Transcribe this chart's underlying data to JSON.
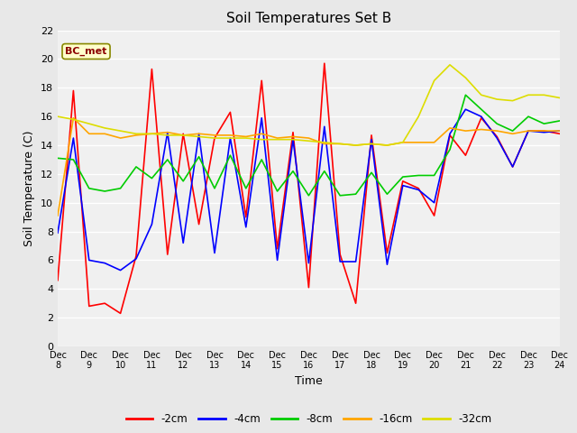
{
  "title": "Soil Temperatures Set B",
  "xlabel": "Time",
  "ylabel": "Soil Temperature (C)",
  "annotation_text": "BC_met",
  "annotation_color": "#8B0000",
  "annotation_bg": "#FFFFCC",
  "ylim": [
    0,
    22
  ],
  "bg_color": "#E8E8E8",
  "plot_bg": "#F0F0F0",
  "xtick_labels": [
    "Dec 8",
    "Dec 9",
    "Dec 10",
    "Dec 11",
    "Dec 12",
    "Dec 13",
    "Dec 14",
    "Dec 15",
    "Dec 16",
    "Dec 17",
    "Dec 18",
    "Dec 19",
    "Dec 20",
    "Dec 21",
    "Dec 22",
    "Dec 23",
    "Dec 24"
  ],
  "series": {
    "-2cm": {
      "color": "#FF0000",
      "data": [
        4.6,
        17.8,
        2.8,
        3.0,
        2.3,
        6.3,
        19.3,
        6.4,
        14.8,
        8.5,
        14.5,
        16.3,
        9.0,
        18.5,
        6.8,
        14.9,
        4.1,
        19.7,
        6.4,
        3.0,
        14.7,
        6.5,
        11.5,
        11.0,
        9.1,
        14.7,
        13.3,
        15.9,
        14.6,
        12.5,
        15.0,
        15.0,
        14.8
      ]
    },
    "-4cm": {
      "color": "#0000FF",
      "data": [
        7.9,
        14.5,
        6.0,
        5.8,
        5.3,
        6.1,
        8.5,
        14.9,
        7.2,
        14.8,
        6.5,
        14.5,
        8.3,
        15.9,
        6.0,
        14.4,
        5.8,
        15.3,
        5.9,
        5.9,
        14.4,
        5.7,
        11.2,
        10.9,
        10.0,
        14.8,
        16.5,
        16.0,
        14.5,
        12.5,
        15.0,
        14.9,
        15.0
      ]
    },
    "-8cm": {
      "color": "#00CC00",
      "data": [
        13.1,
        13.0,
        11.0,
        10.8,
        11.0,
        12.5,
        11.7,
        13.0,
        11.5,
        13.2,
        11.0,
        13.3,
        11.0,
        13.0,
        10.8,
        12.2,
        10.5,
        12.2,
        10.5,
        10.6,
        12.1,
        10.6,
        11.8,
        11.9,
        11.9,
        13.7,
        17.5,
        16.5,
        15.5,
        15.0,
        16.0,
        15.5,
        15.7
      ]
    },
    "-16cm": {
      "color": "#FFA500",
      "data": [
        9.1,
        15.9,
        14.8,
        14.8,
        14.5,
        14.7,
        14.8,
        14.9,
        14.7,
        14.8,
        14.7,
        14.7,
        14.6,
        14.8,
        14.5,
        14.6,
        14.5,
        14.1,
        14.1,
        14.0,
        14.1,
        14.0,
        14.2,
        14.2,
        14.2,
        15.2,
        15.0,
        15.1,
        15.0,
        14.8,
        15.0,
        15.0,
        15.0
      ]
    },
    "-32cm": {
      "color": "#DDDD00",
      "data": [
        16.0,
        15.8,
        15.5,
        15.2,
        15.0,
        14.8,
        14.8,
        14.7,
        14.7,
        14.6,
        14.5,
        14.5,
        14.5,
        14.4,
        14.4,
        14.4,
        14.3,
        14.2,
        14.1,
        14.0,
        14.1,
        14.0,
        14.2,
        16.0,
        18.5,
        19.6,
        18.7,
        17.5,
        17.2,
        17.1,
        17.5,
        17.5,
        17.3
      ]
    }
  }
}
